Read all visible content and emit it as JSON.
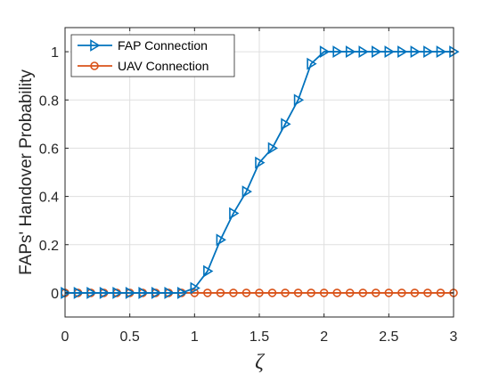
{
  "chart_data": {
    "type": "line",
    "title": "",
    "xlabel": "ζ",
    "ylabel": "FAPs' Handover Probability",
    "xlim": [
      0,
      3
    ],
    "ylim": [
      -0.1,
      1.1
    ],
    "x_ticks": [
      0,
      0.5,
      1,
      1.5,
      2,
      2.5,
      3
    ],
    "x_tick_labels": [
      "0",
      "0.5",
      "1",
      "1.5",
      "2",
      "2.5",
      "3"
    ],
    "y_ticks": [
      0,
      0.2,
      0.4,
      0.6,
      0.8,
      1
    ],
    "y_tick_labels": [
      "0",
      "0.2",
      "0.4",
      "0.6",
      "0.8",
      "1"
    ],
    "grid": true,
    "legend_position": "top-left",
    "x": [
      0,
      0.1,
      0.2,
      0.3,
      0.4,
      0.5,
      0.6,
      0.7,
      0.8,
      0.9,
      1.0,
      1.1,
      1.2,
      1.3,
      1.4,
      1.5,
      1.6,
      1.7,
      1.8,
      1.9,
      2.0,
      2.1,
      2.2,
      2.3,
      2.4,
      2.5,
      2.6,
      2.7,
      2.8,
      2.9,
      3.0
    ],
    "series": [
      {
        "name": "FAP Connection",
        "color": "#0072BD",
        "marker": "triangle-right",
        "values": [
          0,
          0,
          0,
          0,
          0,
          0,
          0,
          0,
          0,
          0,
          0.02,
          0.09,
          0.22,
          0.33,
          0.42,
          0.54,
          0.6,
          0.7,
          0.8,
          0.95,
          1,
          1,
          1,
          1,
          1,
          1,
          1,
          1,
          1,
          1,
          1
        ]
      },
      {
        "name": "UAV Connection",
        "color": "#D95319",
        "marker": "circle",
        "values": [
          0,
          0,
          0,
          0,
          0,
          0,
          0,
          0,
          0,
          0,
          0,
          0,
          0,
          0,
          0,
          0,
          0,
          0,
          0,
          0,
          0,
          0,
          0,
          0,
          0,
          0,
          0,
          0,
          0,
          0,
          0
        ]
      }
    ]
  }
}
